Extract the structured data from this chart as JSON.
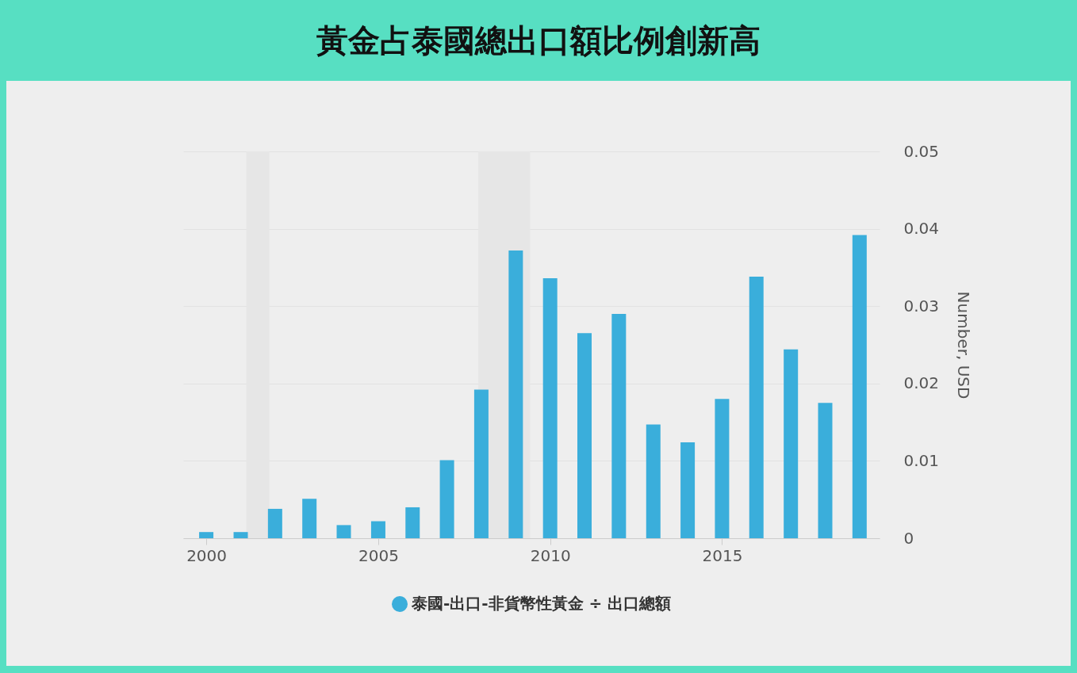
{
  "chart_data": {
    "type": "bar",
    "title": "黃金占泰國總出口額比例創新高",
    "ylabel": "Number, USD",
    "x": [
      "2000",
      "2001",
      "2002",
      "2003",
      "2004",
      "2005",
      "2006",
      "2007",
      "2008",
      "2009",
      "2010",
      "2011",
      "2012",
      "2013",
      "2014",
      "2015",
      "2016",
      "2017",
      "2018",
      "2019"
    ],
    "series": [
      {
        "name": "泰國-出口-非貨幣性黃金 ÷ 出口總額",
        "color": "#3aaedb",
        "values": [
          0.0008,
          0.0008,
          0.0038,
          0.0051,
          0.0017,
          0.0022,
          0.004,
          0.0101,
          0.0192,
          0.0372,
          0.0336,
          0.0265,
          0.029,
          0.0147,
          0.0124,
          0.018,
          0.0338,
          0.0244,
          0.0175,
          0.0392
        ]
      }
    ],
    "xlim": [
      "1999-05",
      "2019-08"
    ],
    "xticks": [
      "2000",
      "2005",
      "2010",
      "2015"
    ],
    "ylim": [
      0,
      0.05
    ],
    "yticks": [
      0,
      0.01,
      0.02,
      0.03,
      0.04,
      0.05
    ],
    "bands": [
      {
        "axis": "x",
        "from": "2001-03",
        "to": "2001-11",
        "color": "#e6e6e6"
      },
      {
        "axis": "x",
        "from": "2007-12",
        "to": "2009-06",
        "color": "#e6e6e6"
      }
    ],
    "grid": "y",
    "legend": "bottom"
  }
}
